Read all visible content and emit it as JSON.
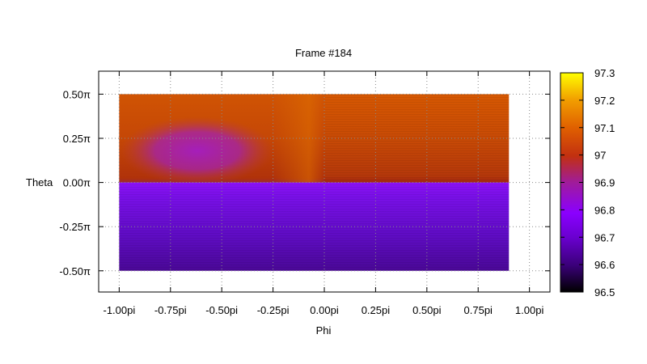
{
  "chart_data": {
    "type": "heatmap",
    "title": "Frame #184",
    "xlabel": "Phi",
    "ylabel": "Theta",
    "xlim": [
      -1.1,
      1.1
    ],
    "ylim": [
      -0.62,
      0.63
    ],
    "x_ticks": [
      {
        "value": -1.0,
        "label": "-1.00pi"
      },
      {
        "value": -0.75,
        "label": "-0.75pi"
      },
      {
        "value": -0.5,
        "label": "-0.50pi"
      },
      {
        "value": -0.25,
        "label": "-0.25pi"
      },
      {
        "value": 0.0,
        "label": "0.00pi"
      },
      {
        "value": 0.25,
        "label": "0.25pi"
      },
      {
        "value": 0.5,
        "label": "0.50pi"
      },
      {
        "value": 0.75,
        "label": "0.75pi"
      },
      {
        "value": 1.0,
        "label": "1.00pi"
      }
    ],
    "y_ticks": [
      {
        "value": 0.5,
        "label": "0.50π"
      },
      {
        "value": 0.25,
        "label": "0.25π"
      },
      {
        "value": 0.0,
        "label": "0.00π"
      },
      {
        "value": -0.25,
        "label": "-0.25π"
      },
      {
        "value": -0.5,
        "label": "-0.50π"
      }
    ],
    "grid": true,
    "data_extent": {
      "x": [
        -1.0,
        0.9
      ],
      "y": [
        -0.5,
        0.5
      ]
    },
    "regions": [
      {
        "region": "upper-left",
        "x": [
          -1.0,
          0.0
        ],
        "y": [
          0.0,
          0.5
        ],
        "value": 96.97
      },
      {
        "region": "upper-left-spot",
        "center": [
          -0.62,
          0.18
        ],
        "value": 96.82
      },
      {
        "region": "upper-right",
        "x": [
          0.0,
          0.9
        ],
        "y": [
          0.0,
          0.5
        ],
        "value": 96.98
      },
      {
        "region": "lower-top",
        "x": [
          -1.0,
          0.9
        ],
        "y": [
          -0.05,
          0.0
        ],
        "value": 96.75
      },
      {
        "region": "lower-bottom",
        "x": [
          -1.0,
          0.9
        ],
        "y": [
          -0.5,
          -0.45
        ],
        "value": 96.6
      }
    ],
    "colorbar": {
      "min": 96.5,
      "max": 97.3,
      "ticks": [
        {
          "value": 97.3,
          "label": "97.3"
        },
        {
          "value": 97.2,
          "label": "97.2"
        },
        {
          "value": 97.1,
          "label": "97.1"
        },
        {
          "value": 97.0,
          "label": "97"
        },
        {
          "value": 96.9,
          "label": "96.9"
        },
        {
          "value": 96.8,
          "label": "96.8"
        },
        {
          "value": 96.7,
          "label": "96.7"
        },
        {
          "value": 96.6,
          "label": "96.6"
        },
        {
          "value": 96.5,
          "label": "96.5"
        }
      ],
      "palette": "gnuplot-pm3d"
    }
  }
}
